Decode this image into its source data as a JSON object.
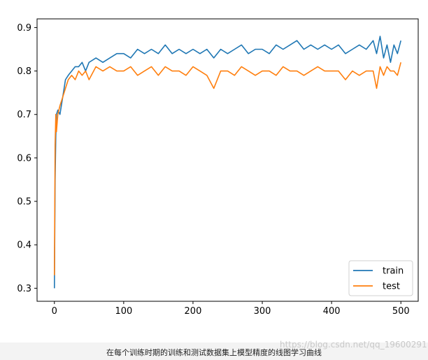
{
  "chart_data": {
    "type": "line",
    "title": "",
    "xlabel": "",
    "ylabel": "",
    "xlim": [
      -25,
      525
    ],
    "ylim": [
      0.27,
      0.92
    ],
    "xticks": [
      0,
      100,
      200,
      300,
      400,
      500
    ],
    "yticks": [
      0.3,
      0.4,
      0.5,
      0.6,
      0.7,
      0.8,
      0.9
    ],
    "grid": false,
    "legend_position": "lower-right",
    "series": [
      {
        "name": "train",
        "color": "#1f77b4",
        "x": [
          0,
          1,
          2,
          3,
          5,
          8,
          12,
          16,
          20,
          25,
          30,
          35,
          40,
          45,
          50,
          60,
          70,
          80,
          90,
          100,
          110,
          120,
          130,
          140,
          150,
          160,
          170,
          180,
          190,
          200,
          210,
          220,
          230,
          240,
          250,
          260,
          270,
          280,
          290,
          300,
          310,
          320,
          330,
          340,
          350,
          360,
          370,
          380,
          390,
          400,
          410,
          420,
          430,
          440,
          450,
          460,
          465,
          470,
          475,
          480,
          485,
          490,
          495,
          500
        ],
        "values": [
          0.3,
          0.55,
          0.65,
          0.7,
          0.71,
          0.7,
          0.74,
          0.78,
          0.79,
          0.8,
          0.81,
          0.81,
          0.82,
          0.8,
          0.82,
          0.83,
          0.82,
          0.83,
          0.84,
          0.84,
          0.83,
          0.85,
          0.84,
          0.85,
          0.84,
          0.86,
          0.84,
          0.85,
          0.84,
          0.85,
          0.84,
          0.85,
          0.83,
          0.85,
          0.84,
          0.85,
          0.86,
          0.84,
          0.85,
          0.85,
          0.84,
          0.86,
          0.85,
          0.86,
          0.87,
          0.85,
          0.86,
          0.85,
          0.86,
          0.85,
          0.86,
          0.84,
          0.85,
          0.86,
          0.85,
          0.87,
          0.84,
          0.88,
          0.83,
          0.86,
          0.82,
          0.86,
          0.84,
          0.87
        ]
      },
      {
        "name": "test",
        "color": "#ff7f0e",
        "x": [
          0,
          1,
          2,
          3,
          5,
          8,
          12,
          16,
          20,
          25,
          30,
          35,
          40,
          45,
          50,
          60,
          70,
          80,
          90,
          100,
          110,
          120,
          130,
          140,
          150,
          160,
          170,
          180,
          190,
          200,
          210,
          220,
          230,
          240,
          250,
          260,
          270,
          280,
          290,
          300,
          310,
          320,
          330,
          340,
          350,
          360,
          370,
          380,
          390,
          400,
          410,
          420,
          430,
          440,
          450,
          460,
          465,
          470,
          475,
          480,
          485,
          490,
          495,
          500
        ],
        "values": [
          0.33,
          0.63,
          0.7,
          0.66,
          0.7,
          0.72,
          0.74,
          0.76,
          0.78,
          0.79,
          0.78,
          0.8,
          0.79,
          0.8,
          0.78,
          0.81,
          0.8,
          0.81,
          0.8,
          0.8,
          0.81,
          0.79,
          0.8,
          0.81,
          0.79,
          0.81,
          0.8,
          0.8,
          0.79,
          0.81,
          0.8,
          0.79,
          0.76,
          0.8,
          0.8,
          0.79,
          0.81,
          0.8,
          0.79,
          0.8,
          0.8,
          0.79,
          0.81,
          0.8,
          0.8,
          0.79,
          0.8,
          0.81,
          0.8,
          0.8,
          0.8,
          0.78,
          0.8,
          0.79,
          0.8,
          0.8,
          0.76,
          0.81,
          0.79,
          0.81,
          0.8,
          0.8,
          0.79,
          0.82
        ]
      }
    ]
  },
  "caption": "在每个训练时期的训练和测试数据集上模型精度的线图学习曲线",
  "watermark": "https://blog.csdn.net/qq_19600291"
}
